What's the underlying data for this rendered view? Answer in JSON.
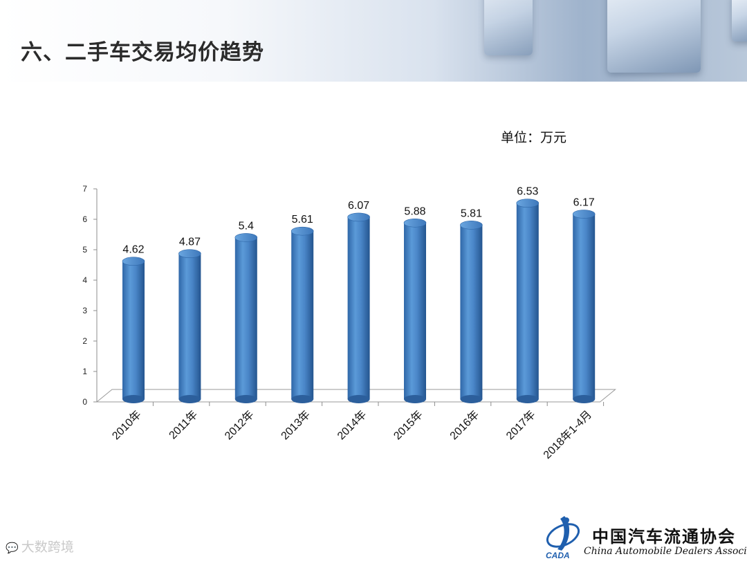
{
  "header": {
    "title": "六、二手车交易均价趋势"
  },
  "unit_label": "单位：万元",
  "chart_data": {
    "type": "bar",
    "title": "",
    "xlabel": "",
    "ylabel": "",
    "categories": [
      "2010年",
      "2011年",
      "2012年",
      "2013年",
      "2014年",
      "2015年",
      "2016年",
      "2017年",
      "2018年1-4月"
    ],
    "values": [
      4.62,
      4.87,
      5.4,
      5.61,
      6.07,
      5.88,
      5.81,
      6.53,
      6.17
    ],
    "data_labels": [
      "4.62",
      "4.87",
      "5.4",
      "5.61",
      "6.07",
      "5.88",
      "5.81",
      "6.53",
      "6.17"
    ],
    "ylim": [
      0,
      7
    ],
    "yticks": [
      0,
      1,
      2,
      3,
      4,
      5,
      6,
      7
    ],
    "style": "3d-cylinder",
    "bar_color": "#4a86c8",
    "grid": false,
    "legend": "none"
  },
  "watermark": {
    "icon": "chat-bubble-icon",
    "text": "大数跨境"
  },
  "logo": {
    "icon": "cada-emblem-icon",
    "cn_name": "中国汽车流通协会",
    "en_name": "China Automobile Dealers Association",
    "badge": "CADA",
    "color": "#1f5fae"
  }
}
